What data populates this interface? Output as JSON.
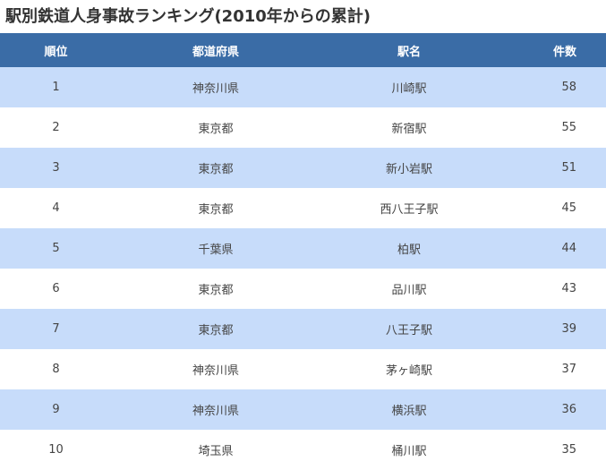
{
  "page": {
    "title": "駅別鉄道人身事故ランキング(2010年からの累計)"
  },
  "table": {
    "headers": [
      "順位",
      "都道府県",
      "駅名",
      "件数"
    ],
    "rows": [
      {
        "rank": "1",
        "prefecture": "神奈川県",
        "station": "川崎駅",
        "count": "58"
      },
      {
        "rank": "2",
        "prefecture": "東京都",
        "station": "新宿駅",
        "count": "55"
      },
      {
        "rank": "3",
        "prefecture": "東京都",
        "station": "新小岩駅",
        "count": "51"
      },
      {
        "rank": "4",
        "prefecture": "東京都",
        "station": "西八王子駅",
        "count": "45"
      },
      {
        "rank": "5",
        "prefecture": "千葉県",
        "station": "柏駅",
        "count": "44"
      },
      {
        "rank": "6",
        "prefecture": "東京都",
        "station": "品川駅",
        "count": "43"
      },
      {
        "rank": "7",
        "prefecture": "東京都",
        "station": "八王子駅",
        "count": "39"
      },
      {
        "rank": "8",
        "prefecture": "神奈川県",
        "station": "茅ヶ崎駅",
        "count": "37"
      },
      {
        "rank": "9",
        "prefecture": "神奈川県",
        "station": "横浜駅",
        "count": "36"
      },
      {
        "rank": "10",
        "prefecture": "埼玉県",
        "station": "桶川駅",
        "count": "35"
      }
    ]
  },
  "colors": {
    "header_bg": "#3a6ca6",
    "row_stripe": "#c7dcfa",
    "row_plain": "#ffffff"
  }
}
